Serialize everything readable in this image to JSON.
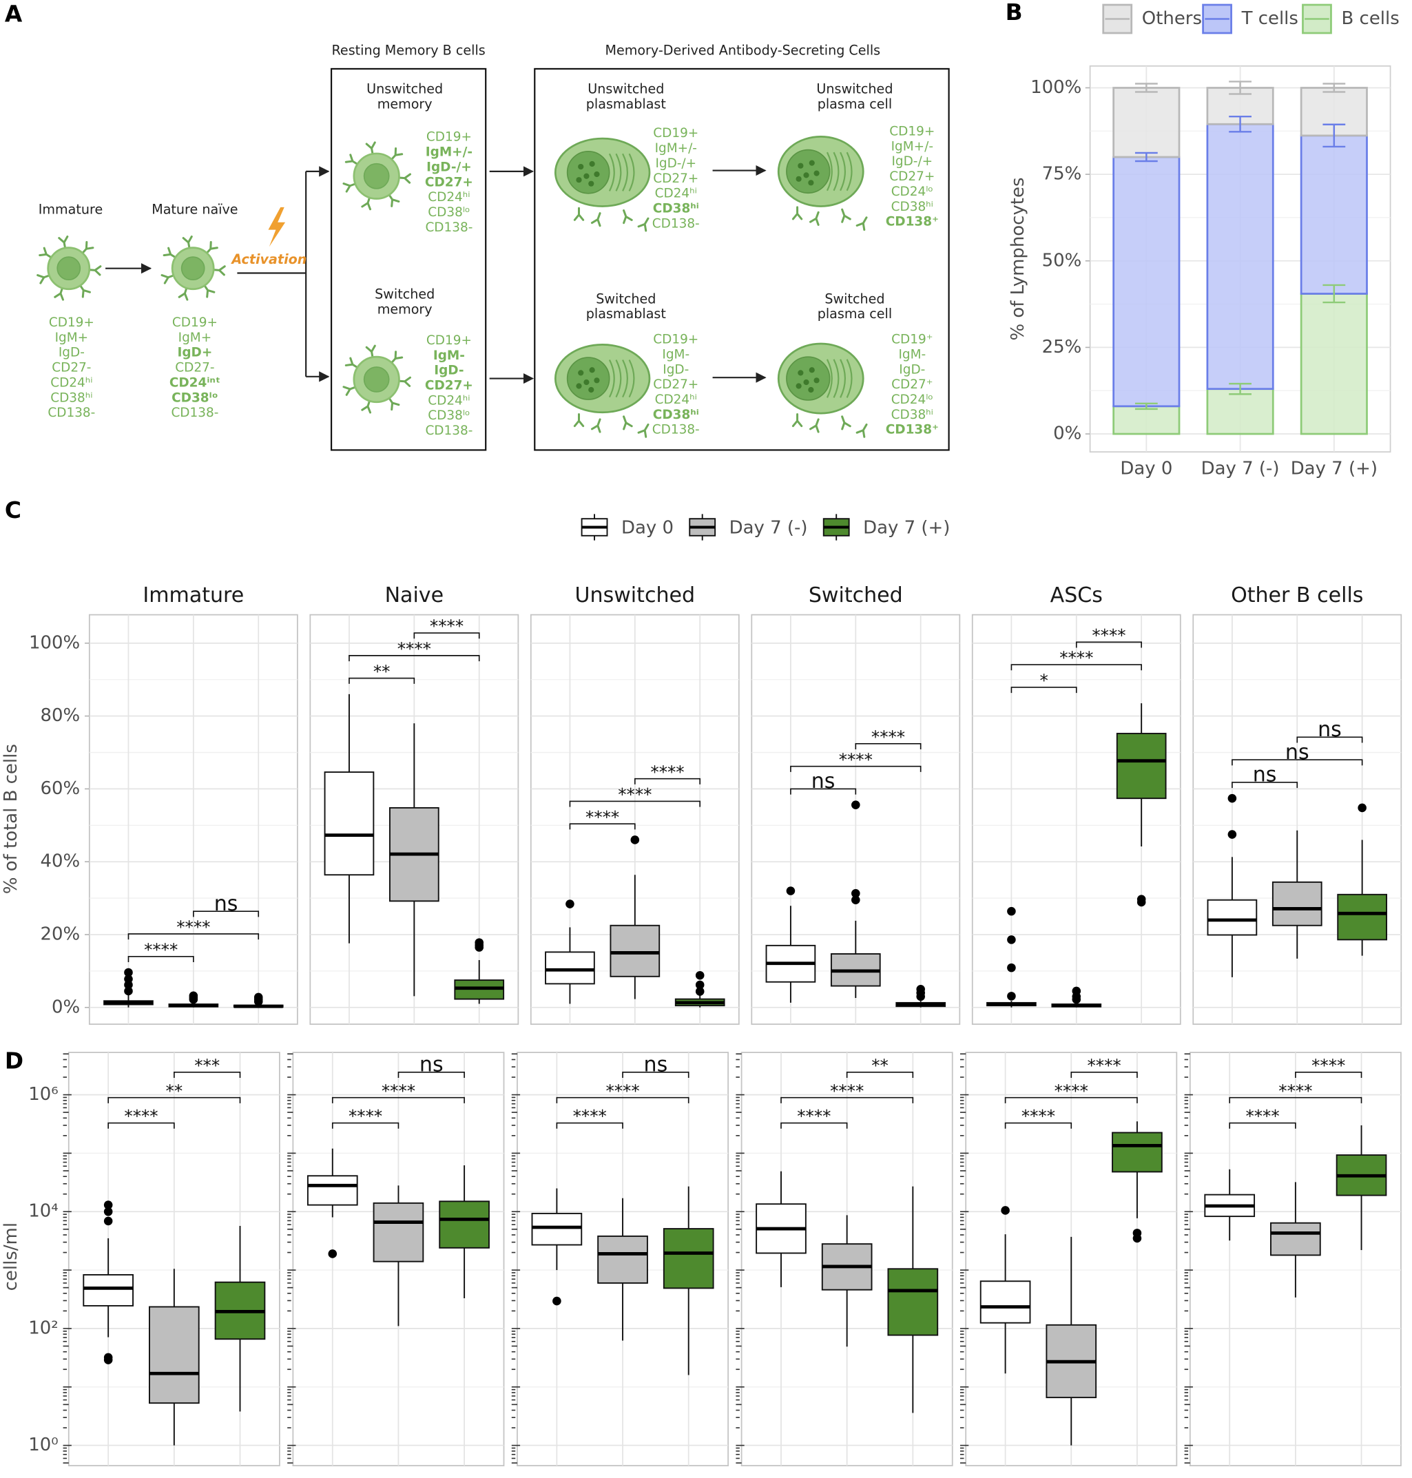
{
  "panel_labels": [
    "A",
    "B",
    "C",
    "D"
  ],
  "panel_a": {
    "group_titles": [
      "Resting Memory B cells",
      "Memory-Derived Antibody-Secreting Cells"
    ],
    "activation": "Activation",
    "cells": [
      {
        "label": [
          "Immature"
        ],
        "markers": [
          "CD19+",
          "IgM+",
          "IgD-",
          "CD27-",
          "CD24ʰⁱ",
          "CD38ʰⁱ",
          "CD138-"
        ],
        "bold": []
      },
      {
        "label": [
          "Mature naïve"
        ],
        "markers": [
          "CD19+",
          "IgM+",
          "IgD+",
          "CD27-",
          "CD24ⁱⁿᵗ",
          "CD38ˡᵒ",
          "CD138-"
        ],
        "bold": [
          2,
          4,
          5
        ]
      },
      {
        "label": [
          "Unswitched",
          "memory"
        ],
        "markers": [
          "CD19+",
          "IgM+/-",
          "IgD-/+",
          "CD27+",
          "CD24ʰⁱ",
          "CD38ˡᵒ",
          "CD138-"
        ],
        "bold": [
          1,
          2,
          3
        ]
      },
      {
        "label": [
          "Switched",
          "memory"
        ],
        "markers": [
          "CD19+",
          "IgM-",
          "IgD-",
          "CD27+",
          "CD24ʰⁱ",
          "CD38ˡᵒ",
          "CD138-"
        ],
        "bold": [
          1,
          2,
          3
        ]
      },
      {
        "label": [
          "Unswitched",
          "plasmablast"
        ],
        "markers": [
          "CD19+",
          "IgM+/-",
          "IgD-/+",
          "CD27+",
          "CD24ʰⁱ",
          "CD38ʰⁱ",
          "CD138-"
        ],
        "bold": [
          5
        ]
      },
      {
        "label": [
          "Unswitched",
          "plasma cell"
        ],
        "markers": [
          "CD19+",
          "IgM+/-",
          "IgD-/+",
          "CD27+",
          "CD24ˡᵒ",
          "CD38ʰⁱ",
          "CD138⁺"
        ],
        "bold": [
          6
        ]
      },
      {
        "label": [
          "Switched",
          "plasmablast"
        ],
        "markers": [
          "CD19+",
          "IgM-",
          "IgD-",
          "CD27+",
          "CD24ʰⁱ",
          "CD38ʰⁱ",
          "CD138-"
        ],
        "bold": [
          5
        ]
      },
      {
        "label": [
          "Switched",
          "plasma cell"
        ],
        "markers": [
          "CD19⁺",
          "IgM-",
          "IgD-",
          "CD27⁺",
          "CD24ˡᵒ",
          "CD38ʰⁱ",
          "CD138⁺"
        ],
        "bold": [
          6
        ]
      }
    ]
  },
  "chart_data": [
    {
      "type": "stacked_bar",
      "ylabel": "% of Lymphocytes",
      "categories": [
        "Day 0",
        "Day 7 (-)",
        "Day 7 (+)"
      ],
      "series": [
        {
          "name": "Others",
          "color": "#b8b8b8",
          "fill": "#e5e5e5",
          "values": [
            20,
            10.5,
            13.8
          ],
          "errors": [
            1.2,
            1.8,
            1.2
          ]
        },
        {
          "name": "T cells",
          "color": "#6a7ee8",
          "fill": "#bcc6f8",
          "values": [
            72,
            76.5,
            45.7
          ],
          "errors": [
            1.2,
            2.2,
            3.2
          ]
        },
        {
          "name": "B cells",
          "color": "#8ecb78",
          "fill": "#d2ebc7",
          "values": [
            8,
            13,
            40.5
          ],
          "errors": [
            0.8,
            1.5,
            2.5
          ]
        }
      ],
      "ylim": [
        -5.2,
        106.3
      ],
      "yticks": [
        {
          "value": 0,
          "label": "0%"
        },
        {
          "value": 25,
          "label": "25%"
        },
        {
          "value": 50,
          "label": "50%"
        },
        {
          "value": 75,
          "label": "75%"
        },
        {
          "value": 100,
          "label": "100%"
        }
      ],
      "grid": true
    },
    {
      "type": "box",
      "ylabel": "% of total B cells",
      "series": [
        {
          "name": "Day 0",
          "color": "#ffffff"
        },
        {
          "name": "Day 7 (-)",
          "color": "#bebebe"
        },
        {
          "name": "Day 7 (+)",
          "color": "#4e8a2e"
        }
      ],
      "ylim": [
        -4.6,
        107.8
      ],
      "yticks": [
        {
          "value": 0,
          "label": "0%"
        },
        {
          "value": 20,
          "label": "20%"
        },
        {
          "value": 40,
          "label": "40%"
        },
        {
          "value": 60,
          "label": "60%"
        },
        {
          "value": 80,
          "label": "80%"
        },
        {
          "value": 100,
          "label": "100%"
        }
      ],
      "grid": true,
      "facets": [
        {
          "title": "Immature",
          "groups": [
            {
              "min": 0,
              "q1": 0.8,
              "median": 1.3,
              "q3": 1.8,
              "max": 3.4,
              "outliers": [
                4.5,
                6.2,
                7.8,
                9.6
              ]
            },
            {
              "min": 0,
              "q1": 0.2,
              "median": 0.5,
              "q3": 0.9,
              "max": 1.8,
              "outliers": [
                2.2,
                2.7,
                3.2
              ]
            },
            {
              "min": 0,
              "q1": 0.1,
              "median": 0.3,
              "q3": 0.6,
              "max": 1.2,
              "outliers": [
                1.6,
                2.2,
                2.8
              ]
            }
          ],
          "comparisons": [
            {
              "pair": [
                0,
                1
              ],
              "label": "****"
            },
            {
              "pair": [
                0,
                2
              ],
              "label": "****"
            },
            {
              "pair": [
                1,
                2
              ],
              "label": "ns"
            }
          ]
        },
        {
          "title": "Naive",
          "groups": [
            {
              "min": 17.6,
              "q1": 36.4,
              "median": 47.3,
              "q3": 64.6,
              "max": 86,
              "outliers": []
            },
            {
              "min": 3.1,
              "q1": 29.2,
              "median": 42.1,
              "q3": 54.8,
              "max": 78,
              "outliers": []
            },
            {
              "min": 1,
              "q1": 2.3,
              "median": 5.3,
              "q3": 7.5,
              "max": 13,
              "outliers": [
                16.5,
                17.1,
                17.8
              ]
            }
          ],
          "comparisons": [
            {
              "pair": [
                0,
                1
              ],
              "label": "**"
            },
            {
              "pair": [
                0,
                2
              ],
              "label": "****"
            },
            {
              "pair": [
                1,
                2
              ],
              "label": "****"
            }
          ]
        },
        {
          "title": "Unswitched",
          "groups": [
            {
              "min": 1,
              "q1": 6.5,
              "median": 10.3,
              "q3": 15.2,
              "max": 22,
              "outliers": [
                28.4
              ]
            },
            {
              "min": 2.3,
              "q1": 8.5,
              "median": 15,
              "q3": 22.5,
              "max": 36.4,
              "outliers": [
                46
              ]
            },
            {
              "min": 0,
              "q1": 0.5,
              "median": 1.3,
              "q3": 2.3,
              "max": 3.8,
              "outliers": [
                4.4,
                6.2,
                8.8
              ]
            }
          ],
          "comparisons": [
            {
              "pair": [
                0,
                1
              ],
              "label": "****"
            },
            {
              "pair": [
                0,
                2
              ],
              "label": "****"
            },
            {
              "pair": [
                1,
                2
              ],
              "label": "****"
            }
          ]
        },
        {
          "title": "Switched",
          "groups": [
            {
              "min": 1.3,
              "q1": 7,
              "median": 12.1,
              "q3": 17,
              "max": 27.9,
              "outliers": [
                32
              ]
            },
            {
              "min": 2.6,
              "q1": 5.9,
              "median": 10,
              "q3": 14.7,
              "max": 23.8,
              "outliers": [
                29.5,
                31.3,
                55.6
              ]
            },
            {
              "min": 0,
              "q1": 0.3,
              "median": 0.8,
              "q3": 1.3,
              "max": 1.8,
              "outliers": [
                3,
                4,
                5
              ]
            }
          ],
          "comparisons": [
            {
              "pair": [
                0,
                1
              ],
              "label": "ns"
            },
            {
              "pair": [
                0,
                2
              ],
              "label": "****"
            },
            {
              "pair": [
                1,
                2
              ],
              "label": "****"
            }
          ]
        },
        {
          "title": "ASCs",
          "groups": [
            {
              "min": 0,
              "q1": 0.5,
              "median": 0.8,
              "q3": 1.3,
              "max": 1.8,
              "outliers": [
                3.1,
                10.9,
                18.6,
                26.4
              ]
            },
            {
              "min": 0,
              "q1": 0.2,
              "median": 0.5,
              "q3": 0.9,
              "max": 1.5,
              "outliers": [
                2.2,
                3,
                4.5
              ]
            },
            {
              "min": 44.2,
              "q1": 57.4,
              "median": 67.7,
              "q3": 75.2,
              "max": 83.5,
              "outliers": [
                28.9,
                29.7
              ]
            }
          ],
          "comparisons": [
            {
              "pair": [
                0,
                1
              ],
              "label": "*"
            },
            {
              "pair": [
                0,
                2
              ],
              "label": "****"
            },
            {
              "pair": [
                1,
                2
              ],
              "label": "****"
            }
          ]
        },
        {
          "title": "Other B cells",
          "groups": [
            {
              "min": 8.3,
              "q1": 19.9,
              "median": 24,
              "q3": 29.5,
              "max": 41.3,
              "outliers": [
                47.5,
                57.4
              ]
            },
            {
              "min": 13.4,
              "q1": 22.5,
              "median": 27.1,
              "q3": 34.4,
              "max": 48.6,
              "outliers": []
            },
            {
              "min": 14.2,
              "q1": 18.6,
              "median": 25.8,
              "q3": 31,
              "max": 46,
              "outliers": [
                54.8
              ]
            }
          ],
          "comparisons": [
            {
              "pair": [
                0,
                1
              ],
              "label": "ns"
            },
            {
              "pair": [
                0,
                2
              ],
              "label": "ns"
            },
            {
              "pair": [
                1,
                2
              ],
              "label": "ns"
            }
          ]
        }
      ]
    },
    {
      "type": "box",
      "ylabel": "cells/ml",
      "log_y": true,
      "colors": [
        "#ffffff",
        "#bebebe",
        "#4e8a2e"
      ],
      "ylim": [
        0.45,
        5300000
      ],
      "yticks": [
        {
          "value": 1,
          "label": "10⁰"
        },
        {
          "value": 100,
          "label": "10²"
        },
        {
          "value": 10000,
          "label": "10⁴"
        },
        {
          "value": 1000000,
          "label": "10⁶"
        }
      ],
      "grid": true,
      "facets": [
        {
          "groups": [
            {
              "min": 71,
              "q1": 245,
              "median": 490,
              "q3": 830,
              "max": 3500,
              "outliers": [
                29,
                32,
                6900,
                10000,
                13000
              ]
            },
            {
              "min": 1,
              "q1": 5.3,
              "median": 17,
              "q3": 235,
              "max": 1050,
              "outliers": []
            },
            {
              "min": 3.8,
              "q1": 66,
              "median": 195,
              "q3": 620,
              "max": 5700,
              "outliers": []
            }
          ],
          "comparisons": [
            {
              "pair": [
                0,
                1
              ],
              "label": "****"
            },
            {
              "pair": [
                0,
                2
              ],
              "label": "**"
            },
            {
              "pair": [
                1,
                2
              ],
              "label": "***"
            }
          ]
        },
        {
          "groups": [
            {
              "min": 8000,
              "q1": 13000,
              "median": 28000,
              "q3": 41000,
              "max": 120000,
              "outliers": [
                1900
              ]
            },
            {
              "min": 110,
              "q1": 1400,
              "median": 6600,
              "q3": 14000,
              "max": 28000,
              "outliers": []
            },
            {
              "min": 330,
              "q1": 2400,
              "median": 7400,
              "q3": 15000,
              "max": 62000,
              "outliers": []
            }
          ],
          "comparisons": [
            {
              "pair": [
                0,
                1
              ],
              "label": "****"
            },
            {
              "pair": [
                0,
                2
              ],
              "label": "****"
            },
            {
              "pair": [
                1,
                2
              ],
              "label": "ns"
            }
          ]
        },
        {
          "groups": [
            {
              "min": 1000,
              "q1": 2700,
              "median": 5400,
              "q3": 9300,
              "max": 25000,
              "outliers": [
                295
              ]
            },
            {
              "min": 62,
              "q1": 600,
              "median": 1900,
              "q3": 3800,
              "max": 17000,
              "outliers": []
            },
            {
              "min": 16,
              "q1": 490,
              "median": 1950,
              "q3": 5100,
              "max": 27000,
              "outliers": []
            }
          ],
          "comparisons": [
            {
              "pair": [
                0,
                1
              ],
              "label": "****"
            },
            {
              "pair": [
                0,
                2
              ],
              "label": "****"
            },
            {
              "pair": [
                1,
                2
              ],
              "label": "ns"
            }
          ]
        },
        {
          "groups": [
            {
              "min": 510,
              "q1": 1950,
              "median": 5100,
              "q3": 13500,
              "max": 49000,
              "outliers": []
            },
            {
              "min": 49,
              "q1": 460,
              "median": 1150,
              "q3": 2800,
              "max": 8700,
              "outliers": []
            },
            {
              "min": 3.6,
              "q1": 77,
              "median": 445,
              "q3": 1050,
              "max": 27000,
              "outliers": []
            }
          ],
          "comparisons": [
            {
              "pair": [
                0,
                1
              ],
              "label": "****"
            },
            {
              "pair": [
                0,
                2
              ],
              "label": "****"
            },
            {
              "pair": [
                1,
                2
              ],
              "label": "**"
            }
          ]
        },
        {
          "groups": [
            {
              "min": 17,
              "q1": 125,
              "median": 235,
              "q3": 645,
              "max": 4100,
              "outliers": [
                10500
              ]
            },
            {
              "min": 1,
              "q1": 6.6,
              "median": 27,
              "q3": 115,
              "max": 3700,
              "outliers": []
            },
            {
              "min": 7700,
              "q1": 48000,
              "median": 135000,
              "q3": 225000,
              "max": 350000,
              "outliers": [
                3500,
                4300
              ]
            }
          ],
          "comparisons": [
            {
              "pair": [
                0,
                1
              ],
              "label": "****"
            },
            {
              "pair": [
                0,
                2
              ],
              "label": "****"
            },
            {
              "pair": [
                1,
                2
              ],
              "label": "****"
            }
          ]
        },
        {
          "groups": [
            {
              "min": 3200,
              "q1": 8300,
              "median": 12500,
              "q3": 19500,
              "max": 53000,
              "outliers": []
            },
            {
              "min": 340,
              "q1": 1800,
              "median": 4300,
              "q3": 6400,
              "max": 32000,
              "outliers": []
            },
            {
              "min": 2200,
              "q1": 19000,
              "median": 41000,
              "q3": 93000,
              "max": 300000,
              "outliers": []
            }
          ],
          "comparisons": [
            {
              "pair": [
                0,
                1
              ],
              "label": "****"
            },
            {
              "pair": [
                0,
                2
              ],
              "label": "****"
            },
            {
              "pair": [
                1,
                2
              ],
              "label": "****"
            }
          ]
        }
      ]
    }
  ]
}
